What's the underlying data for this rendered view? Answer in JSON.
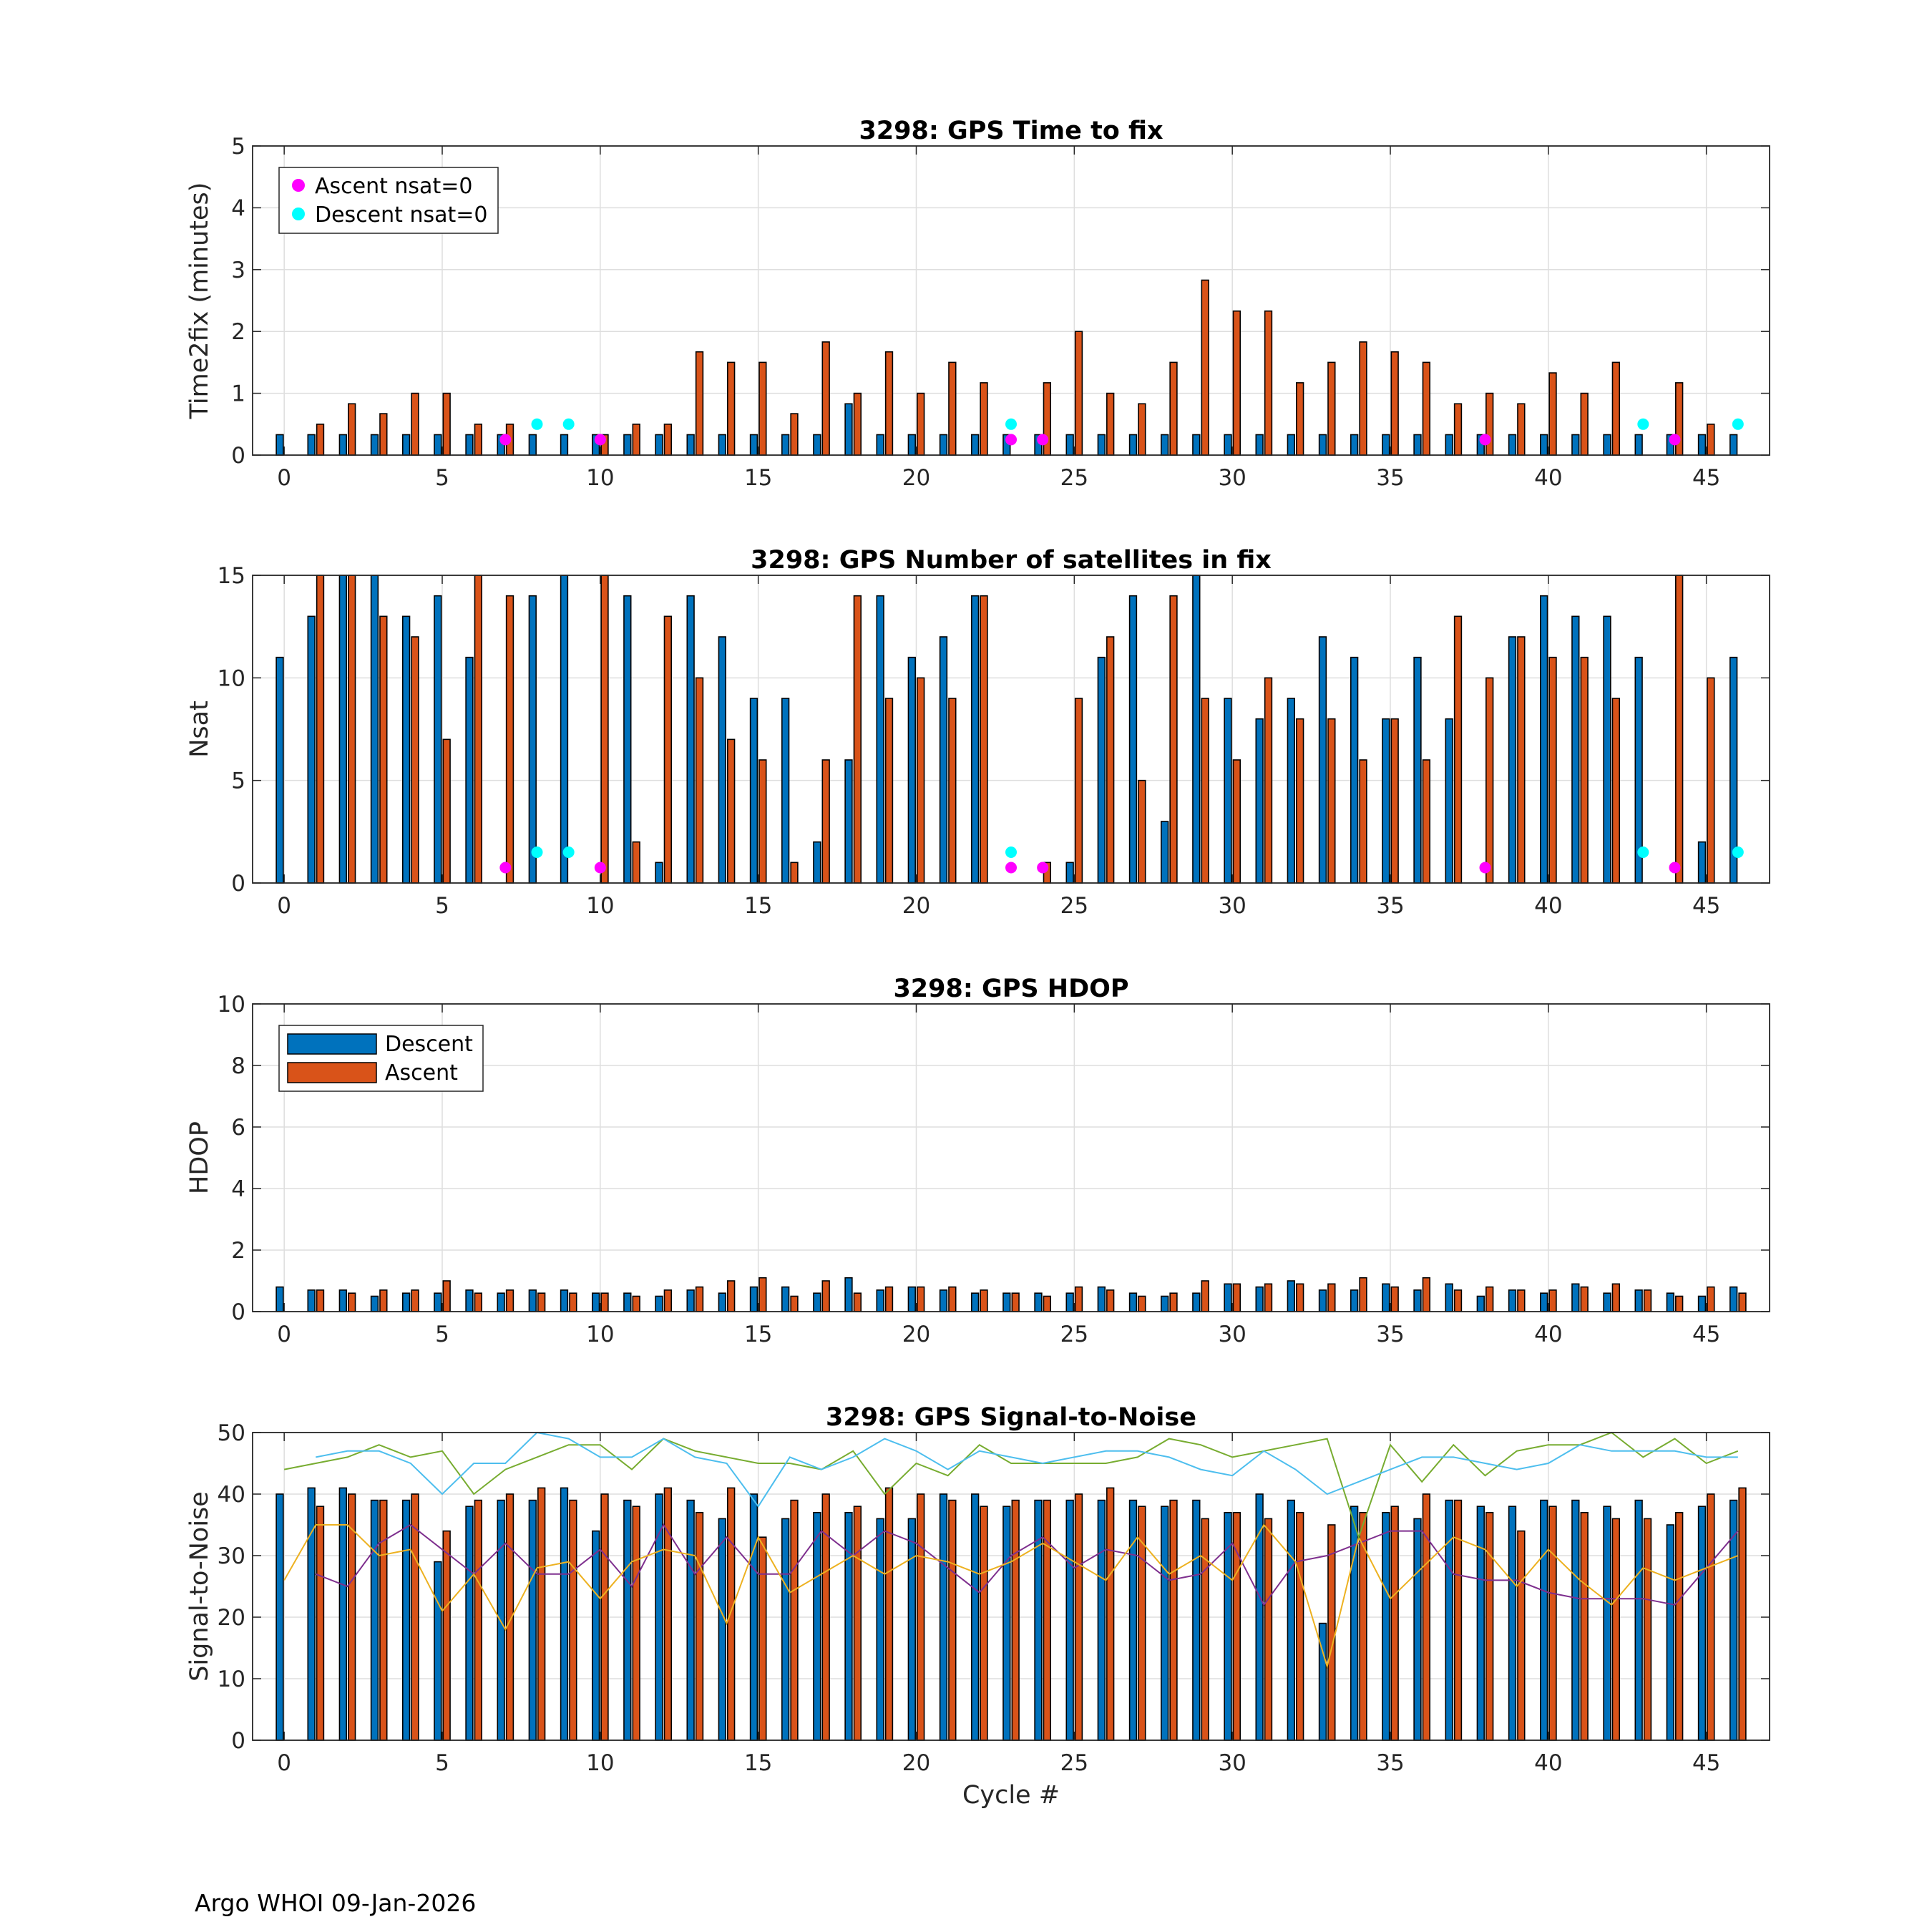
{
  "footer": "Argo WHOI 09-Jan-2026",
  "colors": {
    "descent": "#0072BD",
    "ascent": "#D95319",
    "ascent_nsat0": "#FF00FF",
    "descent_nsat0": "#00FFFF",
    "snr_lines": [
      "#7E2F8E",
      "#EDB120",
      "#77AC30",
      "#4DBEEE"
    ]
  },
  "chart_data": [
    {
      "type": "bar",
      "title": "3298: GPS Time to fix",
      "xlabel": "",
      "ylabel": "Time2fix (minutes)",
      "xlim": [
        -1,
        47
      ],
      "ylim": [
        0,
        5
      ],
      "yticks": [
        0,
        1,
        2,
        3,
        4,
        5
      ],
      "xticks": [
        0,
        5,
        10,
        15,
        20,
        25,
        30,
        35,
        40,
        45
      ],
      "grid": true,
      "legend": {
        "placement": "top-left",
        "entries": [
          "Ascent nsat=0",
          "Descent nsat=0"
        ]
      },
      "x": [
        0,
        1,
        2,
        3,
        4,
        5,
        6,
        7,
        8,
        9,
        10,
        11,
        12,
        13,
        14,
        15,
        16,
        17,
        18,
        19,
        20,
        21,
        22,
        23,
        24,
        25,
        26,
        27,
        28,
        29,
        30,
        31,
        32,
        33,
        34,
        35,
        36,
        37,
        38,
        39,
        40,
        41,
        42,
        43,
        44,
        45,
        46
      ],
      "series": [
        {
          "name": "Descent",
          "values": [
            0.33,
            0.33,
            0.33,
            0.33,
            0.33,
            0.33,
            0.33,
            0.33,
            0.33,
            0.33,
            0.33,
            0.33,
            0.33,
            0.33,
            0.33,
            0.33,
            0.33,
            0.33,
            0.83,
            0.33,
            0.33,
            0.33,
            0.33,
            0.33,
            0.33,
            0.33,
            0.33,
            0.33,
            0.33,
            0.33,
            0.33,
            0.33,
            0.33,
            0.33,
            0.33,
            0.33,
            0.33,
            0.33,
            0.33,
            0.33,
            0.33,
            0.33,
            0.33,
            0.33,
            0.33,
            0.33,
            0.33
          ]
        },
        {
          "name": "Ascent",
          "values": [
            null,
            0.5,
            0.83,
            0.67,
            1.0,
            1.0,
            0.5,
            0.5,
            null,
            null,
            0.33,
            0.5,
            0.5,
            1.67,
            1.5,
            1.5,
            0.67,
            1.83,
            1.0,
            1.67,
            1.0,
            1.5,
            1.17,
            null,
            1.17,
            2.0,
            1.0,
            0.83,
            1.5,
            2.83,
            2.33,
            2.33,
            1.17,
            1.5,
            1.83,
            1.67,
            1.5,
            0.83,
            1.0,
            0.83,
            1.33,
            1.0,
            1.5,
            null,
            1.17,
            0.5,
            null
          ]
        }
      ],
      "markers": {
        "ascent_nsat0": [
          7,
          10,
          23,
          24,
          38,
          44
        ],
        "ascent_y": 0.25,
        "descent_nsat0": [
          8,
          9,
          23,
          43,
          46
        ],
        "descent_y": 0.5
      }
    },
    {
      "type": "bar",
      "title": "3298: GPS Number of satellites in fix",
      "xlabel": "",
      "ylabel": "Nsat",
      "xlim": [
        -1,
        47
      ],
      "ylim": [
        0,
        15
      ],
      "yticks": [
        0,
        5,
        10,
        15
      ],
      "xticks": [
        0,
        5,
        10,
        15,
        20,
        25,
        30,
        35,
        40,
        45
      ],
      "grid": true,
      "x": [
        0,
        1,
        2,
        3,
        4,
        5,
        6,
        7,
        8,
        9,
        10,
        11,
        12,
        13,
        14,
        15,
        16,
        17,
        18,
        19,
        20,
        21,
        22,
        23,
        24,
        25,
        26,
        27,
        28,
        29,
        30,
        31,
        32,
        33,
        34,
        35,
        36,
        37,
        38,
        39,
        40,
        41,
        42,
        43,
        44,
        45,
        46
      ],
      "series": [
        {
          "name": "Descent",
          "values": [
            11,
            13,
            15,
            15,
            13,
            14,
            11,
            0,
            14,
            15,
            0,
            14,
            1,
            14,
            12,
            9,
            9,
            2,
            6,
            14,
            11,
            12,
            14,
            0,
            0,
            1,
            11,
            14,
            3,
            15,
            9,
            8,
            9,
            12,
            11,
            8,
            11,
            8,
            0,
            12,
            14,
            13,
            13,
            11,
            0,
            2,
            11
          ]
        },
        {
          "name": "Ascent",
          "values": [
            null,
            15,
            15,
            13,
            12,
            7,
            15,
            14,
            null,
            null,
            15,
            2,
            13,
            10,
            7,
            6,
            1,
            6,
            14,
            9,
            10,
            9,
            14,
            null,
            1,
            9,
            12,
            5,
            14,
            9,
            6,
            10,
            8,
            8,
            6,
            8,
            6,
            13,
            10,
            12,
            11,
            11,
            9,
            null,
            15,
            10,
            null
          ]
        }
      ],
      "markers": {
        "ascent_nsat0": [
          7,
          10,
          23,
          24,
          38,
          44
        ],
        "ascent_y": 0.25,
        "descent_nsat0": [
          8,
          9,
          23,
          43,
          46
        ],
        "descent_y": 0.5
      }
    },
    {
      "type": "bar",
      "title": "3298: GPS HDOP",
      "xlabel": "",
      "ylabel": "HDOP",
      "xlim": [
        -1,
        47
      ],
      "ylim": [
        0,
        10
      ],
      "yticks": [
        0,
        2,
        4,
        6,
        8,
        10
      ],
      "xticks": [
        0,
        5,
        10,
        15,
        20,
        25,
        30,
        35,
        40,
        45
      ],
      "grid": true,
      "legend": {
        "placement": "top-left",
        "entries": [
          "Descent",
          "Ascent"
        ]
      },
      "x": [
        0,
        1,
        2,
        3,
        4,
        5,
        6,
        7,
        8,
        9,
        10,
        11,
        12,
        13,
        14,
        15,
        16,
        17,
        18,
        19,
        20,
        21,
        22,
        23,
        24,
        25,
        26,
        27,
        28,
        29,
        30,
        31,
        32,
        33,
        34,
        35,
        36,
        37,
        38,
        39,
        40,
        41,
        42,
        43,
        44,
        45,
        46
      ],
      "series": [
        {
          "name": "Descent",
          "values": [
            0.8,
            0.7,
            0.7,
            0.5,
            0.6,
            0.6,
            0.7,
            0.6,
            0.7,
            0.7,
            0.6,
            0.6,
            0.5,
            0.7,
            0.6,
            0.8,
            0.8,
            0.6,
            1.1,
            0.7,
            0.8,
            0.7,
            0.6,
            0.6,
            0.6,
            0.6,
            0.8,
            0.6,
            0.5,
            0.6,
            0.9,
            0.8,
            1.0,
            0.7,
            0.7,
            0.9,
            0.7,
            0.9,
            0.5,
            0.7,
            0.6,
            0.9,
            0.6,
            0.7,
            0.6,
            0.5,
            0.8
          ]
        },
        {
          "name": "Ascent",
          "values": [
            null,
            0.7,
            0.6,
            0.7,
            0.7,
            1.0,
            0.6,
            0.7,
            0.6,
            0.6,
            0.6,
            0.5,
            0.7,
            0.8,
            1.0,
            1.1,
            0.5,
            1.0,
            0.6,
            0.8,
            0.8,
            0.8,
            0.7,
            0.6,
            0.5,
            0.8,
            0.7,
            0.5,
            0.6,
            1.0,
            0.9,
            0.9,
            0.9,
            0.9,
            1.1,
            0.8,
            1.1,
            0.7,
            0.8,
            0.7,
            0.7,
            0.8,
            0.9,
            0.7,
            0.5,
            0.8,
            0.6
          ]
        }
      ]
    },
    {
      "type": "bar",
      "title": "3298: GPS Signal-to-Noise",
      "xlabel": "Cycle #",
      "ylabel": "Signal-to-Noise",
      "xlim": [
        -1,
        47
      ],
      "ylim": [
        0,
        50
      ],
      "yticks": [
        0,
        10,
        20,
        30,
        40,
        50
      ],
      "xticks": [
        0,
        5,
        10,
        15,
        20,
        25,
        30,
        35,
        40,
        45
      ],
      "grid": true,
      "x": [
        0,
        1,
        2,
        3,
        4,
        5,
        6,
        7,
        8,
        9,
        10,
        11,
        12,
        13,
        14,
        15,
        16,
        17,
        18,
        19,
        20,
        21,
        22,
        23,
        24,
        25,
        26,
        27,
        28,
        29,
        30,
        31,
        32,
        33,
        34,
        35,
        36,
        37,
        38,
        39,
        40,
        41,
        42,
        43,
        44,
        45,
        46
      ],
      "series": [
        {
          "name": "Descent",
          "values": [
            40,
            41,
            41,
            39,
            39,
            29,
            38,
            39,
            39,
            41,
            34,
            39,
            40,
            39,
            36,
            40,
            36,
            37,
            37,
            36,
            36,
            40,
            40,
            38,
            39,
            39,
            39,
            39,
            38,
            39,
            37,
            40,
            39,
            19,
            38,
            37,
            36,
            39,
            38,
            38,
            39,
            39,
            38,
            39,
            35,
            38,
            39
          ]
        },
        {
          "name": "Ascent",
          "values": [
            null,
            38,
            40,
            39,
            40,
            34,
            39,
            40,
            41,
            39,
            40,
            38,
            41,
            37,
            41,
            33,
            39,
            40,
            38,
            41,
            40,
            39,
            38,
            39,
            39,
            40,
            41,
            38,
            39,
            36,
            37,
            36,
            37,
            35,
            37,
            38,
            40,
            39,
            37,
            34,
            38,
            37,
            36,
            36,
            37,
            40,
            41
          ]
        }
      ],
      "lines": [
        {
          "color": "#7E2F8E",
          "values": [
            null,
            27,
            25,
            32,
            35,
            31,
            27,
            32,
            27,
            27,
            31,
            25,
            35,
            27,
            33,
            27,
            27,
            34,
            30,
            34,
            32,
            28,
            24,
            30,
            33,
            28,
            31,
            30,
            26,
            27,
            32,
            22,
            29,
            30,
            32,
            34,
            34,
            27,
            26,
            26,
            24,
            23,
            23,
            23,
            22,
            28,
            34
          ]
        },
        {
          "color": "#EDB120",
          "values": [
            26,
            35,
            35,
            30,
            31,
            21,
            27,
            18,
            28,
            29,
            23,
            29,
            31,
            30,
            19,
            33,
            24,
            27,
            30,
            27,
            30,
            29,
            27,
            29,
            32,
            29,
            26,
            33,
            27,
            30,
            26,
            35,
            29,
            12,
            33,
            23,
            28,
            33,
            31,
            25,
            31,
            26,
            22,
            28,
            26,
            28,
            30
          ]
        },
        {
          "color": "#77AC30",
          "values": [
            44,
            45,
            46,
            48,
            46,
            47,
            40,
            44,
            46,
            48,
            48,
            44,
            49,
            47,
            46,
            45,
            45,
            44,
            47,
            40,
            45,
            43,
            48,
            45,
            45,
            45,
            45,
            46,
            49,
            48,
            46,
            47,
            48,
            49,
            33,
            48,
            42,
            48,
            43,
            47,
            48,
            48,
            50,
            46,
            49,
            45,
            47
          ]
        },
        {
          "color": "#4DBEEE",
          "values": [
            null,
            46,
            47,
            47,
            45,
            40,
            45,
            45,
            50,
            49,
            46,
            46,
            49,
            46,
            45,
            38,
            46,
            44,
            46,
            49,
            47,
            44,
            47,
            46,
            45,
            46,
            47,
            47,
            46,
            44,
            43,
            47,
            44,
            40,
            42,
            44,
            46,
            46,
            45,
            44,
            45,
            48,
            47,
            47,
            47,
            46,
            46
          ]
        }
      ]
    }
  ]
}
